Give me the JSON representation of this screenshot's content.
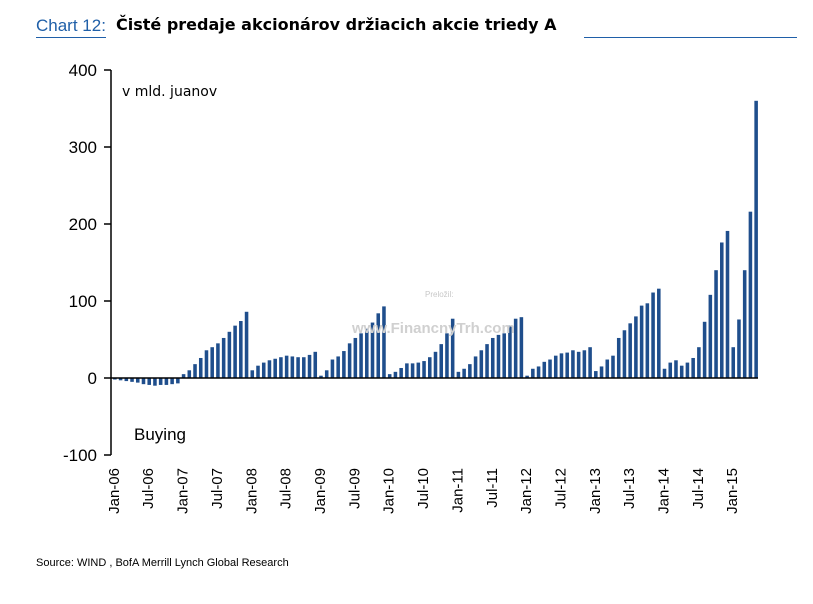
{
  "header": {
    "prefix": "Chart 12:",
    "title": "Čisté predaje akcionárov držiacich akcie triedy A"
  },
  "source": "Source: WIND , BofA Merrill Lynch Global Research",
  "colors": {
    "bar": "#1f4e8c",
    "accent": "#1f5fa8",
    "axis": "#000000"
  },
  "chart_data": {
    "type": "bar",
    "title": "Čisté predaje akcionárov držiacich akcie triedy A",
    "unit_note": "v mld. juanov",
    "annotation": "Buying",
    "watermark": {
      "credit": "Preložil:",
      "site": "www.FinancnyTrh.com"
    },
    "ylim": [
      -100,
      400
    ],
    "yticks": [
      -100,
      0,
      100,
      200,
      300,
      400
    ],
    "grid": false,
    "legend": "none",
    "x_tick_labels": [
      "Jan-06",
      "Jul-06",
      "Jan-07",
      "Jul-07",
      "Jan-08",
      "Jul-08",
      "Jan-09",
      "Jul-09",
      "Jan-10",
      "Jul-10",
      "Jan-11",
      "Jul-11",
      "Jan-12",
      "Jul-12",
      "Jan-13",
      "Jul-13",
      "Jan-14",
      "Jul-14",
      "Jan-15"
    ],
    "x_start": "Jan-06",
    "x_end": "Jun-15",
    "values": [
      -2,
      -3,
      -4,
      -5,
      -6,
      -8,
      -9,
      -10,
      -9,
      -9,
      -8,
      -7,
      5,
      10,
      18,
      26,
      36,
      40,
      45,
      52,
      60,
      68,
      74,
      86,
      10,
      16,
      20,
      23,
      25,
      27,
      29,
      28,
      27,
      27,
      30,
      34,
      3,
      10,
      24,
      28,
      35,
      45,
      52,
      58,
      64,
      72,
      84,
      93,
      5,
      8,
      13,
      19,
      19,
      20,
      22,
      27,
      34,
      44,
      58,
      77,
      8,
      12,
      18,
      28,
      36,
      44,
      52,
      56,
      58,
      68,
      77,
      79,
      3,
      12,
      15,
      21,
      24,
      29,
      32,
      33,
      36,
      34,
      36,
      40,
      9,
      15,
      24,
      29,
      52,
      62,
      71,
      80,
      94,
      97,
      111,
      116,
      12,
      20,
      23,
      16,
      20,
      26,
      40,
      73,
      108,
      140,
      176,
      191,
      40,
      76,
      140,
      216,
      360
    ]
  }
}
